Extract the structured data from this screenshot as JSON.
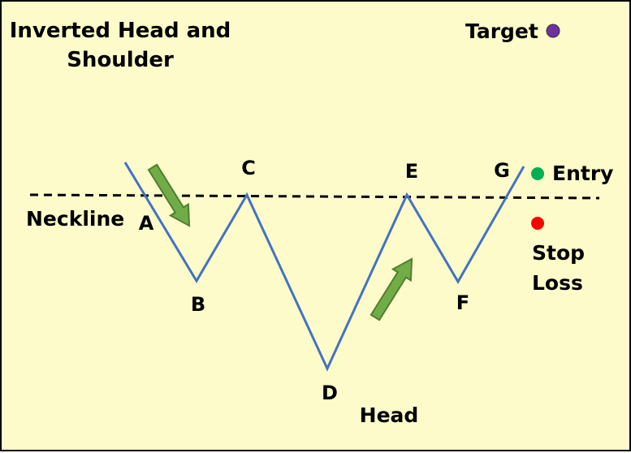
{
  "title": [
    "Inverted Head and",
    "Shoulder"
  ],
  "points": [
    {
      "label": "A"
    },
    {
      "label": "B"
    },
    {
      "label": "C"
    },
    {
      "label": "D"
    },
    {
      "label": "E"
    },
    {
      "label": "F"
    },
    {
      "label": "G"
    }
  ],
  "neckline_label": "Neckline",
  "head_label": "Head",
  "legend": {
    "target": {
      "label": "Target",
      "color": "#7030a0"
    },
    "entry": {
      "label": "Entry",
      "color": "#00b050"
    },
    "stop_loss": {
      "label": [
        "Stop",
        "Loss"
      ],
      "color": "#ff0000"
    }
  },
  "colors": {
    "background": "#fdfbc9",
    "price_line": "#4472c4",
    "arrow_fill": "#70ad47",
    "arrow_stroke": "#507e32"
  }
}
